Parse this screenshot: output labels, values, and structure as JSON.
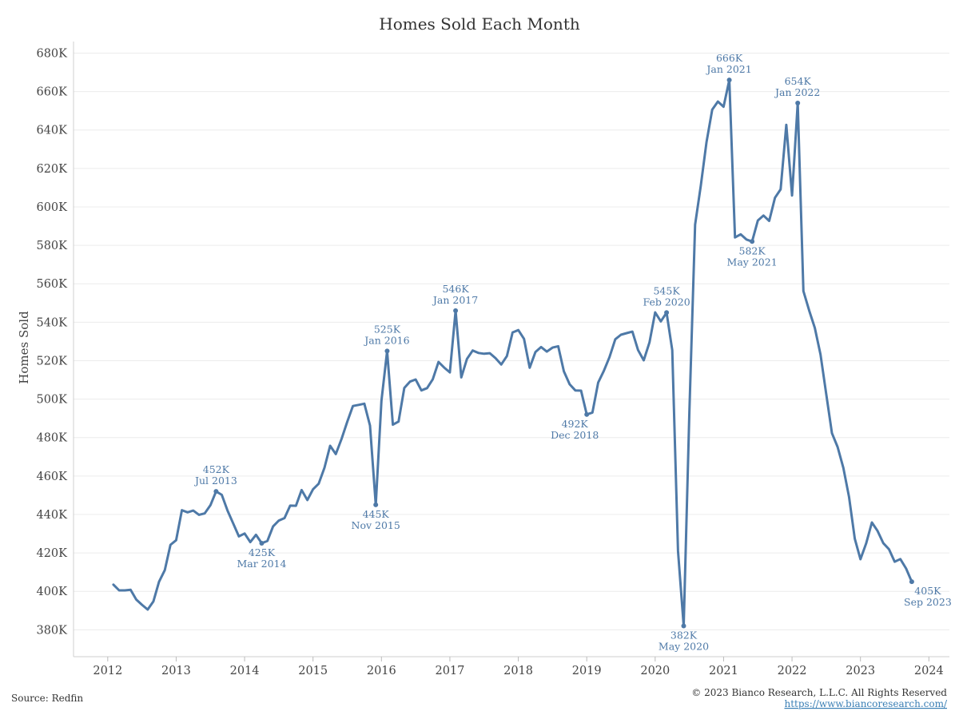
{
  "chart_data": {
    "type": "line",
    "title": "Homes Sold Each Month",
    "ylabel": "Homes Sold",
    "xlabel": "",
    "ylim": [
      366000,
      686000
    ],
    "xlim": [
      2011.5,
      2024.3
    ],
    "yticks": [
      380000,
      400000,
      420000,
      440000,
      460000,
      480000,
      500000,
      520000,
      540000,
      560000,
      580000,
      600000,
      620000,
      640000,
      660000,
      680000
    ],
    "ytick_labels": [
      "380K",
      "400K",
      "420K",
      "440K",
      "460K",
      "480K",
      "500K",
      "520K",
      "540K",
      "560K",
      "580K",
      "600K",
      "620K",
      "640K",
      "660K",
      "680K"
    ],
    "xticks": [
      2012,
      2013,
      2014,
      2015,
      2016,
      2017,
      2018,
      2019,
      2020,
      2021,
      2022,
      2023,
      2024
    ],
    "xtick_labels": [
      "2012",
      "2013",
      "2014",
      "2015",
      "2016",
      "2017",
      "2018",
      "2019",
      "2020",
      "2021",
      "2022",
      "2023",
      "2024"
    ],
    "grid": true,
    "series": [
      {
        "color": "#4e79a7",
        "points": [
          [
            "2012-02",
            403500
          ],
          [
            "2012-03",
            400500
          ],
          [
            "2012-04",
            400500
          ],
          [
            "2012-05",
            400800
          ],
          [
            "2012-06",
            395700
          ],
          [
            "2012-07",
            393000
          ],
          [
            "2012-08",
            390500
          ],
          [
            "2012-09",
            394700
          ],
          [
            "2012-10",
            405000
          ],
          [
            "2012-11",
            411000
          ],
          [
            "2012-12",
            424200
          ],
          [
            "2013-01",
            426600
          ],
          [
            "2013-02",
            442200
          ],
          [
            "2013-03",
            441100
          ],
          [
            "2013-04",
            442000
          ],
          [
            "2013-05",
            439800
          ],
          [
            "2013-06",
            440500
          ],
          [
            "2013-07",
            444800
          ],
          [
            "2013-08",
            452000
          ],
          [
            "2013-09",
            450200
          ],
          [
            "2013-10",
            442000
          ],
          [
            "2013-11",
            435300
          ],
          [
            "2013-12",
            428600
          ],
          [
            "2014-01",
            430100
          ],
          [
            "2014-02",
            425600
          ],
          [
            "2014-03",
            429400
          ],
          [
            "2014-04",
            425000
          ],
          [
            "2014-05",
            426200
          ],
          [
            "2014-06",
            433800
          ],
          [
            "2014-07",
            436800
          ],
          [
            "2014-08",
            438100
          ],
          [
            "2014-09",
            444600
          ],
          [
            "2014-10",
            444500
          ],
          [
            "2014-11",
            452700
          ],
          [
            "2014-12",
            447500
          ],
          [
            "2015-01",
            453100
          ],
          [
            "2015-02",
            456000
          ],
          [
            "2015-03",
            464300
          ],
          [
            "2015-04",
            475700
          ],
          [
            "2015-05",
            471400
          ],
          [
            "2015-06",
            479300
          ],
          [
            "2015-07",
            488200
          ],
          [
            "2015-08",
            496400
          ],
          [
            "2015-09",
            497000
          ],
          [
            "2015-10",
            497600
          ],
          [
            "2015-11",
            486200
          ],
          [
            "2015-12",
            445000
          ],
          [
            "2016-01",
            499100
          ],
          [
            "2016-02",
            525000
          ],
          [
            "2016-03",
            486700
          ],
          [
            "2016-04",
            488300
          ],
          [
            "2016-05",
            505800
          ],
          [
            "2016-06",
            509100
          ],
          [
            "2016-07",
            510200
          ],
          [
            "2016-08",
            504500
          ],
          [
            "2016-09",
            505700
          ],
          [
            "2016-10",
            510300
          ],
          [
            "2016-11",
            519300
          ],
          [
            "2016-12",
            516400
          ],
          [
            "2017-01",
            513900
          ],
          [
            "2017-02",
            546000
          ],
          [
            "2017-03",
            511300
          ],
          [
            "2017-04",
            520900
          ],
          [
            "2017-05",
            525300
          ],
          [
            "2017-06",
            524000
          ],
          [
            "2017-07",
            523600
          ],
          [
            "2017-08",
            523900
          ],
          [
            "2017-09",
            521300
          ],
          [
            "2017-10",
            518000
          ],
          [
            "2017-11",
            522400
          ],
          [
            "2017-12",
            534700
          ],
          [
            "2018-01",
            535900
          ],
          [
            "2018-02",
            531300
          ],
          [
            "2018-03",
            516300
          ],
          [
            "2018-04",
            524500
          ],
          [
            "2018-05",
            527100
          ],
          [
            "2018-06",
            524700
          ],
          [
            "2018-07",
            526800
          ],
          [
            "2018-08",
            527500
          ],
          [
            "2018-09",
            514400
          ],
          [
            "2018-10",
            507700
          ],
          [
            "2018-11",
            504500
          ],
          [
            "2018-12",
            504400
          ],
          [
            "2019-01",
            492000
          ],
          [
            "2019-02",
            493000
          ],
          [
            "2019-03",
            508600
          ],
          [
            "2019-04",
            514700
          ],
          [
            "2019-05",
            521900
          ],
          [
            "2019-06",
            531100
          ],
          [
            "2019-07",
            533500
          ],
          [
            "2019-08",
            534300
          ],
          [
            "2019-09",
            535100
          ],
          [
            "2019-10",
            525500
          ],
          [
            "2019-11",
            520200
          ],
          [
            "2019-12",
            529500
          ],
          [
            "2020-01",
            545100
          ],
          [
            "2020-02",
            540400
          ],
          [
            "2020-03",
            545000
          ],
          [
            "2020-04",
            525400
          ],
          [
            "2020-05",
            421000
          ],
          [
            "2020-06",
            382000
          ],
          [
            "2020-07",
            493100
          ],
          [
            "2020-08",
            590800
          ],
          [
            "2020-09",
            611000
          ],
          [
            "2020-10",
            633500
          ],
          [
            "2020-11",
            650600
          ],
          [
            "2020-12",
            654800
          ],
          [
            "2021-01",
            652100
          ],
          [
            "2021-02",
            666000
          ],
          [
            "2021-03",
            584100
          ],
          [
            "2021-04",
            585700
          ],
          [
            "2021-05",
            583000
          ],
          [
            "2021-06",
            582000
          ],
          [
            "2021-07",
            592900
          ],
          [
            "2021-08",
            595500
          ],
          [
            "2021-09",
            592700
          ],
          [
            "2021-10",
            604700
          ],
          [
            "2021-11",
            609100
          ],
          [
            "2021-12",
            642700
          ],
          [
            "2022-01",
            605900
          ],
          [
            "2022-02",
            654000
          ],
          [
            "2022-03",
            556200
          ],
          [
            "2022-04",
            546100
          ],
          [
            "2022-05",
            537000
          ],
          [
            "2022-06",
            523200
          ],
          [
            "2022-07",
            502500
          ],
          [
            "2022-08",
            482300
          ],
          [
            "2022-09",
            475100
          ],
          [
            "2022-10",
            464200
          ],
          [
            "2022-11",
            449100
          ],
          [
            "2022-12",
            427400
          ],
          [
            "2023-01",
            416700
          ],
          [
            "2023-02",
            424900
          ],
          [
            "2023-03",
            435800
          ],
          [
            "2023-04",
            431400
          ],
          [
            "2023-05",
            425100
          ],
          [
            "2023-06",
            421900
          ],
          [
            "2023-07",
            415400
          ],
          [
            "2023-08",
            416800
          ],
          [
            "2023-09",
            411900
          ],
          [
            "2023-10",
            405000
          ]
        ]
      }
    ],
    "annotations": [
      {
        "date": "2013-08",
        "value": 452000,
        "label": "452K",
        "sub": "Jul 2013",
        "pos": "above"
      },
      {
        "date": "2014-04",
        "value": 425000,
        "label": "425K",
        "sub": "Mar 2014",
        "pos": "below"
      },
      {
        "date": "2015-12",
        "value": 445000,
        "label": "445K",
        "sub": "Nov 2015",
        "pos": "below"
      },
      {
        "date": "2016-02",
        "value": 525000,
        "label": "525K",
        "sub": "Jan 2016",
        "pos": "above"
      },
      {
        "date": "2017-02",
        "value": 546000,
        "label": "546K",
        "sub": "Jan 2017",
        "pos": "above"
      },
      {
        "date": "2019-01",
        "value": 492000,
        "label": "492K",
        "sub": "Dec 2018",
        "pos": "below-left"
      },
      {
        "date": "2020-03",
        "value": 545000,
        "label": "545K",
        "sub": "Feb 2020",
        "pos": "above"
      },
      {
        "date": "2020-06",
        "value": 382000,
        "label": "382K",
        "sub": "May 2020",
        "pos": "below"
      },
      {
        "date": "2021-02",
        "value": 666000,
        "label": "666K",
        "sub": "Jan 2021",
        "pos": "above"
      },
      {
        "date": "2021-06",
        "value": 582000,
        "label": "582K",
        "sub": "May 2021",
        "pos": "below"
      },
      {
        "date": "2022-02",
        "value": 654000,
        "label": "654K",
        "sub": "Jan 2022",
        "pos": "above"
      },
      {
        "date": "2023-10",
        "value": 405000,
        "label": "405K",
        "sub": "Sep 2023",
        "pos": "below-right"
      }
    ]
  },
  "footer": {
    "source": "Source: Redfin",
    "copyright": "© 2023 Bianco Research, L.L.C. All Rights Reserved",
    "url": "https://www.biancoresearch.com/"
  }
}
